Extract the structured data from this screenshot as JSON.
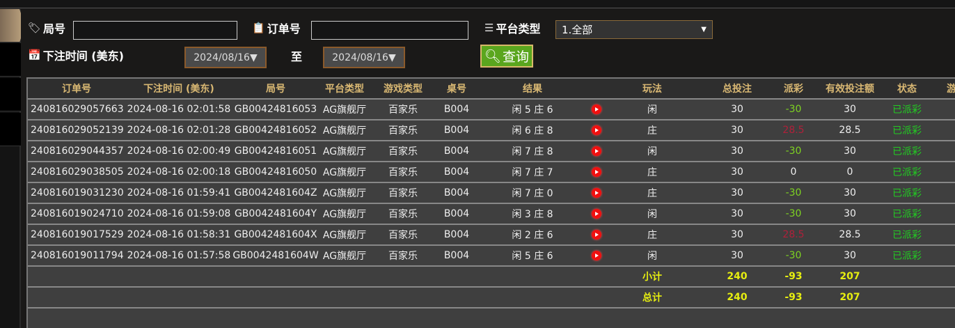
{
  "filters": {
    "round_label": "局号",
    "round_value": "",
    "order_label": "订单号",
    "order_value": "",
    "platform_label": "平台类型",
    "platform_value": "1.全部",
    "time_label": "下注时间 (美东)",
    "date_from": "2024/08/16▼",
    "to_label": "至",
    "date_to": "2024/08/16▼",
    "query_label": "查询"
  },
  "colors": {
    "header_text": "#d9b873",
    "win_negative": "#7ed321",
    "payout_positive": "#b0203a",
    "status": "#22cc22",
    "totals": "#e6ee10",
    "query_button": "#5aa61e"
  },
  "table": {
    "headers": [
      "订单号",
      "下注时间 (美东)",
      "局号",
      "平台类型",
      "游戏类型",
      "桌号",
      "结果",
      "",
      "玩法",
      "总投注",
      "派彩",
      "有效投注额",
      "状态",
      "游"
    ],
    "rows": [
      [
        "240816029057663",
        "2024-08-16 02:01:58",
        "GB00424816053",
        "AG旗舰厅",
        "百家乐",
        "B004",
        "闲 5 庄 6",
        "闲",
        "30",
        "-30",
        "30",
        "已派彩"
      ],
      [
        "240816029052139",
        "2024-08-16 02:01:28",
        "GB00424816052",
        "AG旗舰厅",
        "百家乐",
        "B004",
        "闲 6 庄 8",
        "庄",
        "30",
        "28.5",
        "28.5",
        "已派彩"
      ],
      [
        "240816029044357",
        "2024-08-16 02:00:49",
        "GB00424816051",
        "AG旗舰厅",
        "百家乐",
        "B004",
        "闲 7 庄 8",
        "闲",
        "30",
        "-30",
        "30",
        "已派彩"
      ],
      [
        "240816029038505",
        "2024-08-16 02:00:18",
        "GB00424816050",
        "AG旗舰厅",
        "百家乐",
        "B004",
        "闲 7 庄 7",
        "庄",
        "30",
        "0",
        "0",
        "已派彩"
      ],
      [
        "240816019031230",
        "2024-08-16 01:59:41",
        "GB0042481604Z",
        "AG旗舰厅",
        "百家乐",
        "B004",
        "闲 7 庄 0",
        "庄",
        "30",
        "-30",
        "30",
        "已派彩"
      ],
      [
        "240816019024710",
        "2024-08-16 01:59:08",
        "GB0042481604Y",
        "AG旗舰厅",
        "百家乐",
        "B004",
        "闲 3 庄 8",
        "闲",
        "30",
        "-30",
        "30",
        "已派彩"
      ],
      [
        "240816019017529",
        "2024-08-16 01:58:31",
        "GB0042481604X",
        "AG旗舰厅",
        "百家乐",
        "B004",
        "闲 2 庄 6",
        "庄",
        "30",
        "28.5",
        "28.5",
        "已派彩"
      ],
      [
        "240816019011794",
        "2024-08-16 01:57:58",
        "GB0042481604W",
        "AG旗舰厅",
        "百家乐",
        "B004",
        "闲 5 庄 6",
        "闲",
        "30",
        "-30",
        "30",
        "已派彩"
      ]
    ],
    "subtotal": {
      "label": "小计",
      "total_bet": "240",
      "payout": "-93",
      "valid_bet": "207"
    },
    "total": {
      "label": "总计",
      "total_bet": "240",
      "payout": "-93",
      "valid_bet": "207"
    }
  }
}
